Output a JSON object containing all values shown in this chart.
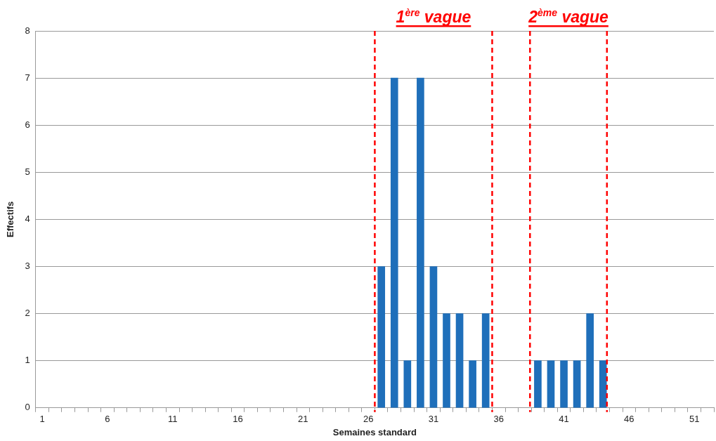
{
  "chart_data": {
    "type": "bar",
    "xlabel": "Semaines standard",
    "ylabel": "Effectifs",
    "x": [
      27,
      28,
      29,
      30,
      31,
      32,
      33,
      34,
      35,
      39,
      40,
      41,
      42,
      43,
      44
    ],
    "values": [
      3,
      7,
      1,
      7,
      3,
      2,
      2,
      1,
      2,
      1,
      1,
      1,
      1,
      2,
      1
    ],
    "color": "#1f6fba",
    "xlim": [
      0.5,
      52.5
    ],
    "xticks": [
      {
        "value": 0.5,
        "label": null
      },
      1,
      {
        "value": 1.5,
        "label": null
      },
      {
        "value": 2.5,
        "label": null
      },
      {
        "value": 3.5,
        "label": null
      },
      {
        "value": 4.5,
        "label": null
      },
      {
        "value": 5.5,
        "label": null
      },
      6,
      {
        "value": 6.5,
        "label": null
      },
      {
        "value": 7.5,
        "label": null
      },
      {
        "value": 8.5,
        "label": null
      },
      {
        "value": 9.5,
        "label": null
      },
      {
        "value": 10.5,
        "label": null
      },
      11,
      {
        "value": 11.5,
        "label": null
      },
      {
        "value": 12.5,
        "label": null
      },
      {
        "value": 13.5,
        "label": null
      },
      {
        "value": 14.5,
        "label": null
      },
      {
        "value": 15.5,
        "label": null
      },
      16,
      {
        "value": 16.5,
        "label": null
      },
      {
        "value": 17.5,
        "label": null
      },
      {
        "value": 18.5,
        "label": null
      },
      {
        "value": 19.5,
        "label": null
      },
      {
        "value": 20.5,
        "label": null
      },
      21,
      {
        "value": 21.5,
        "label": null
      },
      {
        "value": 22.5,
        "label": null
      },
      {
        "value": 23.5,
        "label": null
      },
      {
        "value": 24.5,
        "label": null
      },
      {
        "value": 25.5,
        "label": null
      },
      26,
      {
        "value": 26.5,
        "label": null
      },
      {
        "value": 27.5,
        "label": null
      },
      {
        "value": 28.5,
        "label": null
      },
      {
        "value": 29.5,
        "label": null
      },
      {
        "value": 30.5,
        "label": null
      },
      31,
      {
        "value": 31.5,
        "label": null
      },
      {
        "value": 32.5,
        "label": null
      },
      {
        "value": 33.5,
        "label": null
      },
      {
        "value": 34.5,
        "label": null
      },
      {
        "value": 35.5,
        "label": null
      },
      36,
      {
        "value": 36.5,
        "label": null
      },
      {
        "value": 37.5,
        "label": null
      },
      {
        "value": 38.5,
        "label": null
      },
      {
        "value": 39.5,
        "label": null
      },
      {
        "value": 40.5,
        "label": null
      },
      41,
      {
        "value": 41.5,
        "label": null
      },
      {
        "value": 42.5,
        "label": null
      },
      {
        "value": 43.5,
        "label": null
      },
      {
        "value": 44.5,
        "label": null
      },
      {
        "value": 45.5,
        "label": null
      },
      46,
      {
        "value": 46.5,
        "label": null
      },
      {
        "value": 47.5,
        "label": null
      },
      {
        "value": 48.5,
        "label": null
      },
      {
        "value": 49.5,
        "label": null
      },
      {
        "value": 50.5,
        "label": null
      },
      51,
      {
        "value": 51.5,
        "label": null
      },
      {
        "value": 52.5,
        "label": null
      }
    ],
    "ylim": [
      0,
      8
    ],
    "yticks": [
      0,
      1,
      2,
      3,
      4,
      5,
      6,
      7,
      8
    ],
    "grid": "y",
    "legend": false,
    "ref_lines": [
      {
        "axis": "x",
        "value": 26.5,
        "color": "#ff0000",
        "line_style": "dashed"
      },
      {
        "axis": "x",
        "value": 35.5,
        "color": "#ff0000",
        "line_style": "dashed"
      },
      {
        "axis": "x",
        "value": 38.4,
        "color": "#ff0000",
        "line_style": "dashed"
      },
      {
        "axis": "x",
        "value": 44.3,
        "color": "#ff0000",
        "line_style": "dashed"
      }
    ],
    "annotations": [
      "1$^{ère}$ vague",
      "2$^{ème}$ vague"
    ]
  }
}
